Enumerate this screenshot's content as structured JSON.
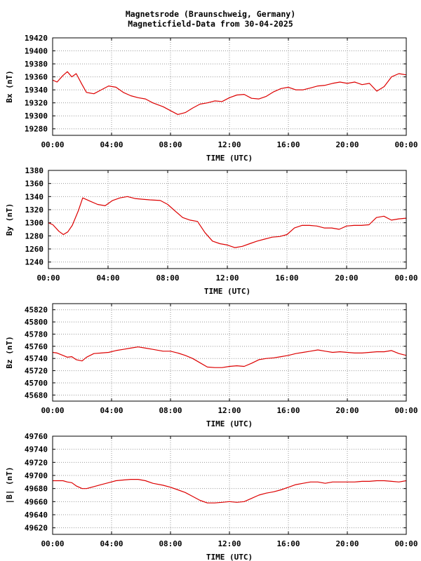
{
  "title_line1": "Magnetsrode (Braunschweig, Germany)",
  "title_line2": "Magneticfield-Data from 30-04-2025",
  "colors": {
    "trace": "#dd0000",
    "grid": "#999999",
    "axes": "#000000"
  },
  "chart_data": [
    {
      "type": "line",
      "ylabel": "Bx (nT)",
      "xlabel": "TIME (UTC)",
      "xlim": [
        0,
        24
      ],
      "xtick_values": [
        0,
        4,
        8,
        12,
        16,
        20,
        24
      ],
      "xticks": [
        "00:00",
        "04:00",
        "08:00",
        "12:00",
        "16:00",
        "20:00",
        "00:00"
      ],
      "ylim": [
        19270,
        19420
      ],
      "yticks": [
        19280,
        19300,
        19320,
        19340,
        19360,
        19380,
        19400,
        19420
      ],
      "grid": true,
      "series": [
        {
          "x": [
            0,
            0.3,
            0.7,
            1.0,
            1.3,
            1.6,
            2.0,
            2.3,
            2.8,
            3.3,
            3.8,
            4.3,
            4.8,
            5.3,
            5.8,
            6.3,
            6.8,
            7.5,
            8.0,
            8.5,
            9.0,
            9.5,
            10.0,
            10.5,
            11.0,
            11.5,
            12.0,
            12.5,
            13.0,
            13.5,
            14.0,
            14.5,
            15.0,
            15.5,
            16.0,
            16.5,
            17.0,
            17.5,
            18.0,
            18.5,
            19.0,
            19.5,
            20.0,
            20.5,
            21.0,
            21.5,
            22.0,
            22.5,
            23.0,
            23.5,
            24.0
          ],
          "y": [
            19355,
            19352,
            19362,
            19368,
            19360,
            19365,
            19348,
            19336,
            19334,
            19340,
            19346,
            19344,
            19336,
            19331,
            19328,
            19326,
            19320,
            19314,
            19308,
            19302,
            19305,
            19312,
            19318,
            19320,
            19323,
            19322,
            19328,
            19332,
            19333,
            19327,
            19326,
            19330,
            19337,
            19342,
            19344,
            19340,
            19340,
            19343,
            19346,
            19347,
            19350,
            19352,
            19350,
            19352,
            19348,
            19350,
            19338,
            19345,
            19360,
            19365,
            19363
          ]
        }
      ]
    },
    {
      "type": "line",
      "ylabel": "By (nT)",
      "xlabel": "TIME (UTC)",
      "xlim": [
        0,
        24
      ],
      "xtick_values": [
        0,
        4,
        8,
        12,
        16,
        20,
        24
      ],
      "xticks": [
        "00:00",
        "04:00",
        "08:00",
        "12:00",
        "16:00",
        "20:00",
        "00:00"
      ],
      "ylim": [
        1230,
        1380
      ],
      "yticks": [
        1240,
        1260,
        1280,
        1300,
        1320,
        1340,
        1360,
        1380
      ],
      "grid": true,
      "series": [
        {
          "x": [
            0,
            0.3,
            0.7,
            1.0,
            1.3,
            1.6,
            2.0,
            2.3,
            2.8,
            3.3,
            3.8,
            4.3,
            4.8,
            5.3,
            5.8,
            6.3,
            6.8,
            7.5,
            8.0,
            8.5,
            9.0,
            9.5,
            10.0,
            10.5,
            11.0,
            11.5,
            12.0,
            12.5,
            13.0,
            13.5,
            14.0,
            14.5,
            15.0,
            15.5,
            16.0,
            16.5,
            17.0,
            17.5,
            18.0,
            18.5,
            19.0,
            19.5,
            20.0,
            20.5,
            21.0,
            21.5,
            22.0,
            22.5,
            23.0,
            23.5,
            24.0
          ],
          "y": [
            1300,
            1297,
            1287,
            1282,
            1286,
            1296,
            1318,
            1338,
            1333,
            1328,
            1326,
            1334,
            1338,
            1340,
            1337,
            1336,
            1335,
            1334,
            1328,
            1318,
            1308,
            1304,
            1302,
            1285,
            1272,
            1268,
            1266,
            1262,
            1264,
            1268,
            1272,
            1275,
            1278,
            1279,
            1282,
            1292,
            1296,
            1296,
            1295,
            1292,
            1292,
            1290,
            1295,
            1296,
            1296,
            1297,
            1308,
            1310,
            1304,
            1306,
            1307
          ]
        }
      ]
    },
    {
      "type": "line",
      "ylabel": "Bz (nT)",
      "xlabel": "TIME (UTC)",
      "xlim": [
        0,
        24
      ],
      "xtick_values": [
        0,
        4,
        8,
        12,
        16,
        20,
        24
      ],
      "xticks": [
        "00:00",
        "04:00",
        "08:00",
        "12:00",
        "16:00",
        "20:00",
        "00:00"
      ],
      "ylim": [
        45670,
        45830
      ],
      "yticks": [
        45680,
        45700,
        45720,
        45740,
        45760,
        45780,
        45800,
        45820
      ],
      "grid": true,
      "series": [
        {
          "x": [
            0,
            0.3,
            0.7,
            1.0,
            1.3,
            1.6,
            2.0,
            2.3,
            2.8,
            3.3,
            3.8,
            4.3,
            4.8,
            5.3,
            5.8,
            6.3,
            6.8,
            7.5,
            8.0,
            8.5,
            9.0,
            9.5,
            10.0,
            10.5,
            11.0,
            11.5,
            12.0,
            12.5,
            13.0,
            13.5,
            14.0,
            14.5,
            15.0,
            15.5,
            16.0,
            16.5,
            17.0,
            17.5,
            18.0,
            18.5,
            19.0,
            19.5,
            20.0,
            20.5,
            21.0,
            21.5,
            22.0,
            22.5,
            23.0,
            23.5,
            24.0
          ],
          "y": [
            45750,
            45749,
            45745,
            45742,
            45743,
            45738,
            45736,
            45742,
            45748,
            45749,
            45750,
            45753,
            45755,
            45757,
            45759,
            45757,
            45755,
            45752,
            45752,
            45749,
            45745,
            45740,
            45733,
            45726,
            45725,
            45725,
            45727,
            45728,
            45727,
            45732,
            45738,
            45740,
            45741,
            45743,
            45745,
            45748,
            45750,
            45752,
            45754,
            45752,
            45750,
            45751,
            45750,
            45749,
            45749,
            45750,
            45751,
            45751,
            45753,
            45748,
            45745
          ]
        }
      ]
    },
    {
      "type": "line",
      "ylabel": "|B| (nT)",
      "xlabel": "TIME (UTC)",
      "xlim": [
        0,
        24
      ],
      "xtick_values": [
        0,
        4,
        8,
        12,
        16,
        20,
        24
      ],
      "xticks": [
        "00:00",
        "04:00",
        "08:00",
        "12:00",
        "16:00",
        "20:00",
        "00:00"
      ],
      "ylim": [
        49610,
        49760
      ],
      "yticks": [
        49620,
        49640,
        49660,
        49680,
        49700,
        49720,
        49740,
        49760
      ],
      "grid": true,
      "series": [
        {
          "x": [
            0,
            0.3,
            0.7,
            1.0,
            1.3,
            1.6,
            2.0,
            2.3,
            2.8,
            3.3,
            3.8,
            4.3,
            4.8,
            5.3,
            5.8,
            6.3,
            6.8,
            7.5,
            8.0,
            8.5,
            9.0,
            9.5,
            10.0,
            10.5,
            11.0,
            11.5,
            12.0,
            12.5,
            13.0,
            13.5,
            14.0,
            14.5,
            15.0,
            15.5,
            16.0,
            16.5,
            17.0,
            17.5,
            18.0,
            18.5,
            19.0,
            19.5,
            20.0,
            20.5,
            21.0,
            21.5,
            22.0,
            22.5,
            23.0,
            23.5,
            24.0
          ],
          "y": [
            49692,
            49692,
            49692,
            49690,
            49689,
            49684,
            49680,
            49680,
            49683,
            49686,
            49689,
            49692,
            49693,
            49694,
            49694,
            49692,
            49688,
            49685,
            49682,
            49678,
            49674,
            49668,
            49662,
            49658,
            49658,
            49659,
            49660,
            49659,
            49660,
            49665,
            49670,
            49673,
            49675,
            49678,
            49682,
            49686,
            49688,
            49690,
            49690,
            49688,
            49690,
            49690,
            49690,
            49690,
            49691,
            49691,
            49692,
            49692,
            49691,
            49690,
            49692
          ]
        }
      ]
    }
  ]
}
